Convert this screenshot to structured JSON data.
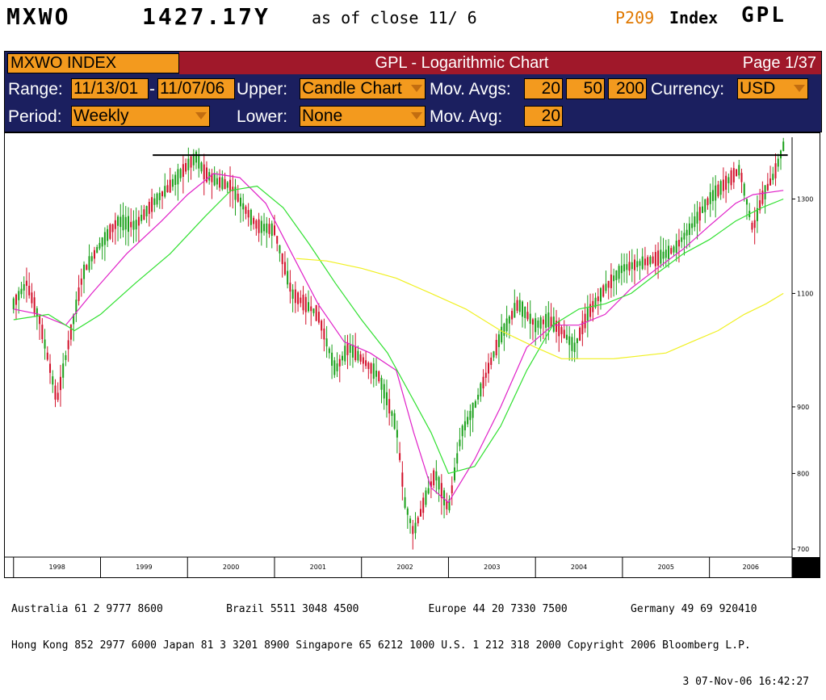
{
  "header": {
    "ticker": "MXWO",
    "price": "1427.17Y",
    "as_of": "as of close 11/ 6",
    "page_code": "P209",
    "index_label": "Index",
    "function": "GPL"
  },
  "panel": {
    "security": "MXWO INDEX",
    "title": "GPL - Logarithmic Chart",
    "page": "Page 1/37",
    "range_label": "Range:",
    "range_from": "11/13/01",
    "range_sep": "-",
    "range_to": "11/07/06",
    "upper_label": "Upper:",
    "upper_value": "Candle Chart",
    "mov_avgs_label": "Mov. Avgs:",
    "mov_avgs": [
      "20",
      "50",
      "200"
    ],
    "currency_label": "Currency:",
    "currency_value": "USD",
    "period_label": "Period:",
    "period_value": "Weekly",
    "lower_label": "Lower:",
    "lower_value": "None",
    "mov_avg_label": "Mov. Avg:",
    "mov_avg_value": "20"
  },
  "colors": {
    "panel_bg": "#1b1f5f",
    "title_bar": "#a0182a",
    "field_bg": "#f39a1e",
    "candles": "#d2102a",
    "candles_up": "#1aa01a",
    "ma20": "#e020c8",
    "ma50": "#30e030",
    "ma200": "#f0f020",
    "resistance_line": "#000000"
  },
  "chart_data": {
    "type": "line",
    "scale": "log",
    "x_labels": [
      "1998",
      "1999",
      "2000",
      "2001",
      "2002",
      "2003",
      "2004",
      "2005",
      "2006"
    ],
    "y_ticks": [
      700,
      800,
      900,
      1100,
      1300
    ],
    "ylim": [
      690,
      1450
    ],
    "resistance": 1405,
    "series": [
      {
        "name": "MXWO",
        "color": "#2a8a2a",
        "x": [
          1998.0,
          1998.15,
          1998.3,
          1998.5,
          1998.65,
          1998.8,
          1999.0,
          1999.2,
          1999.4,
          1999.6,
          1999.8,
          2000.0,
          2000.1,
          2000.2,
          2000.35,
          2000.5,
          2000.65,
          2000.8,
          2001.0,
          2001.2,
          2001.35,
          2001.5,
          2001.7,
          2001.85,
          2002.0,
          2002.2,
          2002.4,
          2002.5,
          2002.6,
          2002.75,
          2002.85,
          2003.0,
          2003.15,
          2003.3,
          2003.45,
          2003.6,
          2003.8,
          2004.0,
          2004.15,
          2004.3,
          2004.45,
          2004.6,
          2004.8,
          2005.0,
          2005.2,
          2005.4,
          2005.6,
          2005.8,
          2006.0,
          2006.2,
          2006.35,
          2006.5,
          2006.6,
          2006.75,
          2006.85
        ],
        "y": [
          1080,
          1120,
          1050,
          910,
          1020,
          1140,
          1200,
          1250,
          1240,
          1290,
          1330,
          1380,
          1400,
          1360,
          1340,
          1330,
          1280,
          1240,
          1230,
          1100,
          1080,
          1060,
          960,
          1000,
          980,
          950,
          870,
          760,
          720,
          770,
          800,
          750,
          860,
          900,
          960,
          1020,
          1080,
          1040,
          1050,
          1030,
          1000,
          1060,
          1110,
          1150,
          1160,
          1170,
          1190,
          1240,
          1300,
          1340,
          1370,
          1230,
          1300,
          1360,
          1427
        ]
      },
      {
        "name": "20",
        "color": "#e020c8",
        "x": [
          1998.0,
          1998.3,
          1998.6,
          1998.9,
          1999.3,
          1999.7,
          2000.0,
          2000.3,
          2000.6,
          2000.9,
          2001.2,
          2001.5,
          2001.8,
          2002.1,
          2002.4,
          2002.6,
          2002.8,
          2003.0,
          2003.3,
          2003.6,
          2003.9,
          2004.2,
          2004.5,
          2004.8,
          2005.1,
          2005.4,
          2005.7,
          2006.0,
          2006.3,
          2006.5,
          2006.85
        ],
        "y": [
          1070,
          1060,
          1040,
          1100,
          1180,
          1250,
          1310,
          1360,
          1350,
          1290,
          1180,
          1080,
          1010,
          990,
          960,
          860,
          780,
          760,
          820,
          900,
          1000,
          1040,
          1040,
          1060,
          1110,
          1150,
          1190,
          1240,
          1290,
          1310,
          1320
        ]
      },
      {
        "name": "50",
        "color": "#30e030",
        "x": [
          1998.0,
          1998.4,
          1998.7,
          1999.0,
          1999.4,
          1999.8,
          2000.2,
          2000.5,
          2000.8,
          2001.1,
          2001.4,
          2001.7,
          2002.0,
          2002.3,
          2002.6,
          2002.8,
          2003.0,
          2003.3,
          2003.6,
          2003.9,
          2004.2,
          2004.5,
          2004.8,
          2005.1,
          2005.4,
          2005.7,
          2006.0,
          2006.3,
          2006.6,
          2006.85
        ],
        "y": [
          1050,
          1060,
          1030,
          1060,
          1120,
          1180,
          1260,
          1320,
          1330,
          1280,
          1200,
          1120,
          1050,
          990,
          910,
          860,
          800,
          810,
          870,
          960,
          1040,
          1070,
          1080,
          1100,
          1140,
          1180,
          1210,
          1250,
          1280,
          1300
        ]
      },
      {
        "name": "200",
        "color": "#f0f020",
        "x": [
          2001.25,
          2001.6,
          2002.0,
          2002.4,
          2002.8,
          2003.2,
          2003.6,
          2004.0,
          2004.3,
          2004.6,
          2004.9,
          2005.2,
          2005.5,
          2005.8,
          2006.1,
          2006.4,
          2006.65,
          2006.85
        ],
        "y": [
          1170,
          1165,
          1150,
          1130,
          1100,
          1070,
          1030,
          1000,
          980,
          980,
          980,
          985,
          990,
          1010,
          1030,
          1060,
          1080,
          1100
        ]
      }
    ]
  },
  "footer": {
    "line1": "Australia 61 2 9777 8600          Brazil 5511 3048 4500           Europe 44 20 7330 7500          Germany 49 69 920410",
    "line2": "Hong Kong 852 2977 6000 Japan 81 3 3201 8900 Singapore 65 6212 1000 U.S. 1 212 318 2000 Copyright 2006 Bloomberg L.P.",
    "line3": "3 07-Nov-06 16:42:27"
  }
}
